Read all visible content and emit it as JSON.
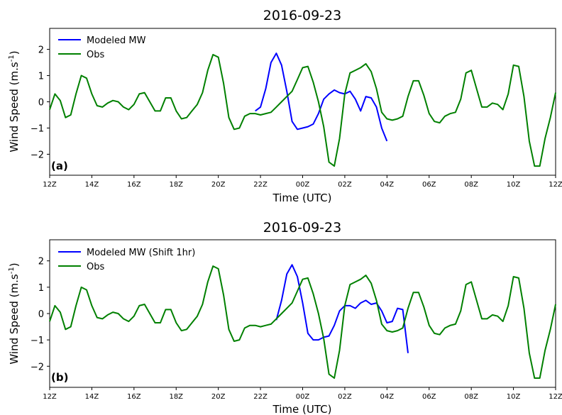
{
  "chart_data": [
    {
      "type": "line",
      "title": "2016-09-23",
      "xlabel": "Time (UTC)",
      "ylabel": "Wind Speed (m.s",
      "ylabel_sup": "-1",
      "ylabel_end": ")",
      "panel_label": "(a)",
      "xlim": [
        12,
        36
      ],
      "ylim": [
        -2.8,
        2.8
      ],
      "x_ticks": [
        12,
        14,
        16,
        18,
        20,
        22,
        24,
        26,
        28,
        30,
        32,
        34,
        36
      ],
      "x_tick_labels": [
        "12Z",
        "14Z",
        "16Z",
        "18Z",
        "20Z",
        "22Z",
        "00Z",
        "02Z",
        "04Z",
        "06Z",
        "08Z",
        "10Z",
        "12Z"
      ],
      "y_ticks": [
        -2,
        -1,
        0,
        1,
        2
      ],
      "y_tick_labels": [
        "−2",
        "−1",
        "0",
        "1",
        "2"
      ],
      "legend": "top-left",
      "grid": false,
      "series": [
        {
          "name": "Modeled MW",
          "color": "#0000ff",
          "x": [
            21.75,
            22.0,
            22.25,
            22.5,
            22.75,
            23.0,
            23.25,
            23.5,
            23.75,
            24.0,
            24.25,
            24.5,
            24.75,
            25.0,
            25.25,
            25.5,
            25.75,
            26.0,
            26.25,
            26.5,
            26.75,
            27.0,
            27.25,
            27.5,
            27.75,
            28.0
          ],
          "y": [
            -0.35,
            -0.2,
            0.5,
            1.5,
            1.85,
            1.4,
            0.4,
            -0.75,
            -1.05,
            -1.0,
            -0.95,
            -0.85,
            -0.45,
            0.1,
            0.3,
            0.45,
            0.35,
            0.3,
            0.4,
            0.1,
            -0.35,
            0.2,
            0.15,
            -0.2,
            -1.0,
            -1.5
          ]
        },
        {
          "name": "Obs",
          "color": "#008000",
          "x": [
            12.0,
            12.25,
            12.5,
            12.75,
            13.0,
            13.25,
            13.5,
            13.75,
            14.0,
            14.25,
            14.5,
            14.75,
            15.0,
            15.25,
            15.5,
            15.75,
            16.0,
            16.25,
            16.5,
            16.75,
            17.0,
            17.25,
            17.5,
            17.75,
            18.0,
            18.25,
            18.5,
            18.75,
            19.0,
            19.25,
            19.5,
            19.75,
            20.0,
            20.25,
            20.5,
            20.75,
            21.0,
            21.25,
            21.5,
            21.75,
            22.0,
            22.25,
            22.5,
            22.75,
            23.0,
            23.25,
            23.5,
            23.75,
            24.0,
            24.25,
            24.5,
            24.75,
            25.0,
            25.25,
            25.5,
            25.75,
            26.0,
            26.25,
            26.5,
            26.75,
            27.0,
            27.25,
            27.5,
            27.75,
            28.0,
            28.25,
            28.5,
            28.75,
            29.0,
            29.25,
            29.5,
            29.75,
            30.0,
            30.25,
            30.5,
            30.75,
            31.0,
            31.25,
            31.5,
            31.75,
            32.0,
            32.25,
            32.5,
            32.75,
            33.0,
            33.25,
            33.5,
            33.75,
            34.0,
            34.25,
            34.5,
            34.75,
            35.0,
            35.25,
            35.5,
            35.75,
            36.0
          ],
          "y": [
            -0.3,
            0.3,
            0.05,
            -0.6,
            -0.5,
            0.3,
            1.0,
            0.9,
            0.3,
            -0.15,
            -0.2,
            -0.05,
            0.05,
            0.0,
            -0.2,
            -0.3,
            -0.1,
            0.3,
            0.35,
            0.0,
            -0.35,
            -0.35,
            0.15,
            0.15,
            -0.35,
            -0.65,
            -0.6,
            -0.35,
            -0.1,
            0.35,
            1.2,
            1.8,
            1.7,
            0.7,
            -0.6,
            -1.05,
            -1.0,
            -0.55,
            -0.45,
            -0.45,
            -0.5,
            -0.45,
            -0.4,
            -0.2,
            0.0,
            0.2,
            0.4,
            0.85,
            1.3,
            1.35,
            0.75,
            0.0,
            -0.95,
            -2.3,
            -2.45,
            -1.4,
            0.3,
            1.1,
            1.2,
            1.3,
            1.45,
            1.15,
            0.5,
            -0.4,
            -0.65,
            -0.7,
            -0.65,
            -0.55,
            0.2,
            0.8,
            0.8,
            0.25,
            -0.45,
            -0.75,
            -0.8,
            -0.55,
            -0.45,
            -0.4,
            0.1,
            1.1,
            1.2,
            0.5,
            -0.2,
            -0.2,
            -0.05,
            -0.1,
            -0.3,
            0.3,
            1.4,
            1.35,
            0.2,
            -1.5,
            -2.45,
            -2.45,
            -1.4,
            -0.6,
            0.35
          ]
        }
      ]
    },
    {
      "type": "line",
      "title": "2016-09-23",
      "xlabel": "Time (UTC)",
      "ylabel": "Wind Speed (m.s",
      "ylabel_sup": "-1",
      "ylabel_end": ")",
      "panel_label": "(b)",
      "xlim": [
        12,
        36
      ],
      "ylim": [
        -2.8,
        2.8
      ],
      "x_ticks": [
        12,
        14,
        16,
        18,
        20,
        22,
        24,
        26,
        28,
        30,
        32,
        34,
        36
      ],
      "x_tick_labels": [
        "12Z",
        "14Z",
        "16Z",
        "18Z",
        "20Z",
        "22Z",
        "00Z",
        "02Z",
        "04Z",
        "06Z",
        "08Z",
        "10Z",
        "12Z"
      ],
      "y_ticks": [
        -2,
        -1,
        0,
        1,
        2
      ],
      "y_tick_labels": [
        "−2",
        "−1",
        "0",
        "1",
        "2"
      ],
      "legend": "top-left",
      "grid": false,
      "series": [
        {
          "name": "Modeled MW (Shift 1hr)",
          "color": "#0000ff",
          "x": [
            22.75,
            23.0,
            23.25,
            23.5,
            23.75,
            24.0,
            24.25,
            24.5,
            24.75,
            25.0,
            25.25,
            25.5,
            25.75,
            26.0,
            26.25,
            26.5,
            26.75,
            27.0,
            27.25,
            27.5,
            27.75,
            28.0,
            28.25,
            28.5,
            28.75,
            29.0
          ],
          "y": [
            -0.25,
            0.5,
            1.5,
            1.85,
            1.4,
            0.4,
            -0.75,
            -1.0,
            -1.0,
            -0.9,
            -0.85,
            -0.45,
            0.1,
            0.3,
            0.3,
            0.2,
            0.4,
            0.5,
            0.35,
            0.4,
            0.1,
            -0.35,
            -0.3,
            0.2,
            0.15,
            -1.5
          ]
        },
        {
          "name": "Obs",
          "color": "#008000",
          "x": [
            12.0,
            12.25,
            12.5,
            12.75,
            13.0,
            13.25,
            13.5,
            13.75,
            14.0,
            14.25,
            14.5,
            14.75,
            15.0,
            15.25,
            15.5,
            15.75,
            16.0,
            16.25,
            16.5,
            16.75,
            17.0,
            17.25,
            17.5,
            17.75,
            18.0,
            18.25,
            18.5,
            18.75,
            19.0,
            19.25,
            19.5,
            19.75,
            20.0,
            20.25,
            20.5,
            20.75,
            21.0,
            21.25,
            21.5,
            21.75,
            22.0,
            22.25,
            22.5,
            22.75,
            23.0,
            23.25,
            23.5,
            23.75,
            24.0,
            24.25,
            24.5,
            24.75,
            25.0,
            25.25,
            25.5,
            25.75,
            26.0,
            26.25,
            26.5,
            26.75,
            27.0,
            27.25,
            27.5,
            27.75,
            28.0,
            28.25,
            28.5,
            28.75,
            29.0,
            29.25,
            29.5,
            29.75,
            30.0,
            30.25,
            30.5,
            30.75,
            31.0,
            31.25,
            31.5,
            31.75,
            32.0,
            32.25,
            32.5,
            32.75,
            33.0,
            33.25,
            33.5,
            33.75,
            34.0,
            34.25,
            34.5,
            34.75,
            35.0,
            35.25,
            35.5,
            35.75,
            36.0
          ],
          "y": [
            -0.3,
            0.3,
            0.05,
            -0.6,
            -0.5,
            0.3,
            1.0,
            0.9,
            0.3,
            -0.15,
            -0.2,
            -0.05,
            0.05,
            0.0,
            -0.2,
            -0.3,
            -0.1,
            0.3,
            0.35,
            0.0,
            -0.35,
            -0.35,
            0.15,
            0.15,
            -0.35,
            -0.65,
            -0.6,
            -0.35,
            -0.1,
            0.35,
            1.2,
            1.8,
            1.7,
            0.7,
            -0.6,
            -1.05,
            -1.0,
            -0.55,
            -0.45,
            -0.45,
            -0.5,
            -0.45,
            -0.4,
            -0.2,
            0.0,
            0.2,
            0.4,
            0.85,
            1.3,
            1.35,
            0.75,
            0.0,
            -0.95,
            -2.3,
            -2.45,
            -1.4,
            0.3,
            1.1,
            1.2,
            1.3,
            1.45,
            1.15,
            0.5,
            -0.4,
            -0.65,
            -0.7,
            -0.65,
            -0.55,
            0.2,
            0.8,
            0.8,
            0.25,
            -0.45,
            -0.75,
            -0.8,
            -0.55,
            -0.45,
            -0.4,
            0.1,
            1.1,
            1.2,
            0.5,
            -0.2,
            -0.2,
            -0.05,
            -0.1,
            -0.3,
            0.3,
            1.4,
            1.35,
            0.2,
            -1.5,
            -2.45,
            -2.45,
            -1.4,
            -0.6,
            0.35
          ]
        }
      ]
    }
  ]
}
